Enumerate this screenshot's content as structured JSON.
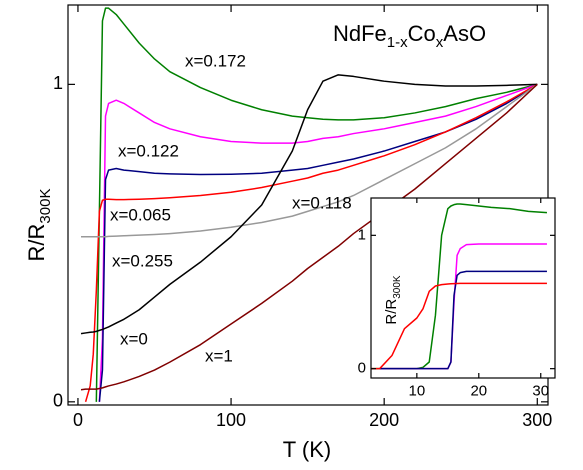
{
  "chart_data": [
    {
      "type": "line",
      "title": [
        "NdFe",
        "1-x",
        "Co",
        "x",
        "AsO"
      ],
      "x_label": "T (K)",
      "y_label": [
        "R/R",
        "300K"
      ],
      "x": [
        2,
        5,
        8,
        10,
        12,
        14,
        16,
        18,
        20,
        25,
        30,
        40,
        50,
        60,
        80,
        100,
        120,
        140,
        150,
        160,
        170,
        180,
        200,
        220,
        240,
        260,
        280,
        300
      ],
      "series": [
        {
          "name": "x=0.172",
          "color": "#008000",
          "values": [
            null,
            null,
            null,
            null,
            0.0,
            0.6,
            1.2,
            1.24,
            1.24,
            1.22,
            1.19,
            1.13,
            1.08,
            1.04,
            0.99,
            0.95,
            0.92,
            0.9,
            0.895,
            0.89,
            0.888,
            0.888,
            0.895,
            0.91,
            0.93,
            0.955,
            0.975,
            1.0
          ]
        },
        {
          "name": "x=0.122",
          "color": "#ff00ff",
          "values": [
            null,
            null,
            null,
            null,
            null,
            0.0,
            0.2,
            0.9,
            0.94,
            0.95,
            0.94,
            0.91,
            0.88,
            0.86,
            0.835,
            0.82,
            0.815,
            0.815,
            0.82,
            0.83,
            0.835,
            0.845,
            0.86,
            0.88,
            0.9,
            0.93,
            0.965,
            1.0
          ]
        },
        {
          "name": "x=0.118",
          "color": "#000080",
          "values": [
            null,
            null,
            null,
            null,
            null,
            0.0,
            0.1,
            0.7,
            0.73,
            0.735,
            0.73,
            0.725,
            0.72,
            0.718,
            0.716,
            0.717,
            0.72,
            0.73,
            0.735,
            0.745,
            0.755,
            0.765,
            0.79,
            0.82,
            0.85,
            0.89,
            0.94,
            1.0
          ]
        },
        {
          "name": "x=0.065",
          "color": "#ff0000",
          "values": [
            null,
            0.0,
            0.05,
            0.15,
            0.35,
            0.6,
            0.635,
            0.638,
            0.638,
            0.637,
            0.637,
            0.638,
            0.64,
            0.643,
            0.65,
            0.66,
            0.675,
            0.695,
            0.705,
            0.72,
            0.73,
            0.745,
            0.775,
            0.81,
            0.85,
            0.895,
            0.945,
            1.0
          ]
        },
        {
          "name": "x=0.255",
          "color": "#999999",
          "values": [
            0.52,
            0.52,
            0.52,
            0.52,
            0.52,
            0.52,
            0.52,
            0.52,
            0.521,
            0.522,
            0.523,
            0.525,
            0.527,
            0.53,
            0.538,
            0.55,
            0.565,
            0.585,
            0.6,
            0.615,
            0.63,
            0.65,
            0.7,
            0.75,
            0.8,
            0.86,
            0.93,
            1.0
          ]
        },
        {
          "name": "x=0",
          "color": "#000000",
          "values": [
            0.215,
            0.217,
            0.219,
            0.22,
            0.222,
            0.225,
            0.228,
            0.232,
            0.236,
            0.248,
            0.26,
            0.29,
            0.33,
            0.37,
            0.44,
            0.52,
            0.62,
            0.79,
            0.92,
            1.01,
            1.03,
            1.025,
            1.01,
            1.0,
            0.995,
            0.995,
            0.997,
            1.0
          ]
        },
        {
          "name": "x=1",
          "color": "#800000",
          "values": [
            0.038,
            0.04,
            0.04,
            0.04,
            0.04,
            0.042,
            0.044,
            0.047,
            0.05,
            0.056,
            0.063,
            0.08,
            0.1,
            0.125,
            0.18,
            0.245,
            0.31,
            0.38,
            0.42,
            0.455,
            0.49,
            0.53,
            0.6,
            0.67,
            0.75,
            0.83,
            0.91,
            1.0
          ]
        }
      ],
      "xlim": [
        -6.5,
        307
      ],
      "ylim": [
        -0.01,
        1.25
      ],
      "xticks": [
        0,
        100,
        200,
        300
      ],
      "yticks": [
        0,
        1
      ]
    },
    {
      "type": "line",
      "y_label": [
        "R/R",
        "300K"
      ],
      "x": [
        2,
        4,
        6,
        8,
        10,
        11,
        12,
        13,
        14,
        15,
        15.5,
        16,
        16.5,
        17,
        18,
        20,
        22,
        25,
        28,
        31
      ],
      "series": [
        {
          "color": "#008000",
          "values": [
            0,
            0,
            0,
            0,
            0,
            0.01,
            0.05,
            0.4,
            1.0,
            1.2,
            1.22,
            1.23,
            1.235,
            1.235,
            1.23,
            1.22,
            1.21,
            1.2,
            1.18,
            1.17
          ]
        },
        {
          "color": "#ff00ff",
          "values": [
            null,
            0,
            0,
            0,
            0,
            0,
            0,
            0,
            0,
            0,
            0.05,
            0.5,
            0.85,
            0.9,
            0.93,
            0.935,
            0.935,
            0.935,
            0.935,
            0.935
          ]
        },
        {
          "color": "#000080",
          "values": [
            null,
            0,
            0,
            0,
            0,
            0,
            0,
            0,
            0,
            0,
            0.05,
            0.55,
            0.7,
            0.72,
            0.73,
            0.73,
            0.73,
            0.73,
            0.73,
            0.73
          ]
        },
        {
          "color": "#ff0000",
          "values": [
            0,
            0,
            0.1,
            0.3,
            0.38,
            0.45,
            0.58,
            0.62,
            0.63,
            0.635,
            0.637,
            0.638,
            0.639,
            0.64,
            0.64,
            0.64,
            0.64,
            0.64,
            0.64,
            0.64
          ]
        }
      ],
      "xlim": [
        2.6,
        32.3
      ],
      "ylim": [
        -0.07,
        1.28
      ],
      "xticks": [
        10,
        20,
        30
      ],
      "yticks": [
        0,
        1
      ]
    }
  ]
}
